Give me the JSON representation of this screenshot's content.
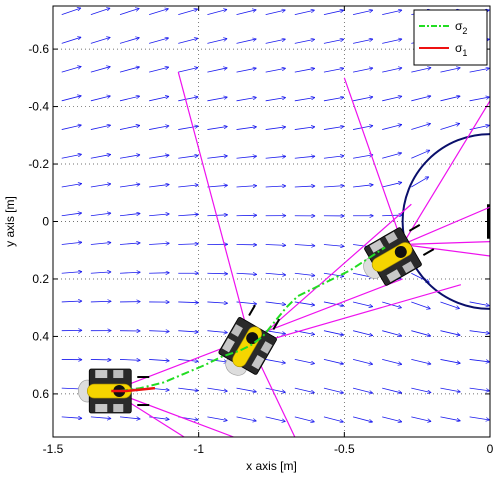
{
  "chart_data": {
    "type": "line",
    "title": "",
    "xlabel": "x axis [m]",
    "ylabel": "y axis [m]",
    "xlim": [
      -1.5,
      0
    ],
    "ylim": [
      -0.75,
      0.75
    ],
    "y_reversed": true,
    "grid": true,
    "legend_position": "top-right",
    "x_ticks": [
      "-1.5",
      "-1",
      "-0.5",
      "0"
    ],
    "y_ticks": [
      "-0.6",
      "-0.4",
      "-0.2",
      "0",
      "0.2",
      "0.4",
      "0.6"
    ],
    "x_tick_values": [
      -1.5,
      -1,
      -0.5,
      0
    ],
    "y_tick_values": [
      -0.6,
      -0.4,
      -0.2,
      0,
      0.2,
      0.4,
      0.6
    ],
    "series": [
      {
        "name": "σ2",
        "label_main": "σ",
        "label_sub": "2",
        "style": "dash-dot",
        "color": "#22dd22",
        "x": [
          -1.27,
          -1.2,
          -1.12,
          -1.05,
          -0.98,
          -0.92,
          -0.86,
          -0.82,
          -0.78,
          -0.74,
          -0.7,
          -0.66,
          -0.6,
          -0.54,
          -0.48,
          -0.42,
          -0.36
        ],
        "y": [
          0.59,
          0.58,
          0.56,
          0.53,
          0.5,
          0.47,
          0.45,
          0.43,
          0.4,
          0.35,
          0.3,
          0.26,
          0.23,
          0.2,
          0.17,
          0.13,
          0.09
        ]
      },
      {
        "name": "σ1",
        "label_main": "σ",
        "label_sub": "1",
        "style": "solid",
        "color": "#ee1111",
        "x": [
          -1.3,
          -1.25,
          -1.2,
          -1.15
        ],
        "y": [
          0.59,
          0.59,
          0.585,
          0.58
        ]
      }
    ],
    "obstacle": {
      "center_x": 0,
      "center_y": 0,
      "radius": 0.3,
      "color": "#0a0f6b"
    },
    "sensor_rays": [
      {
        "x0": -0.3,
        "y0": 0.08,
        "x1": -0.5,
        "y1": -0.5
      },
      {
        "x0": -0.3,
        "y0": 0.08,
        "x1": 0,
        "y1": -0.42
      },
      {
        "x0": -0.3,
        "y0": 0.08,
        "x1": 0,
        "y1": -0.05
      },
      {
        "x0": -0.3,
        "y0": 0.08,
        "x1": 0,
        "y1": 0.07
      },
      {
        "x0": -0.3,
        "y0": 0.08,
        "x1": 0,
        "y1": 0.12
      },
      {
        "x0": -0.82,
        "y0": 0.43,
        "x1": -1.07,
        "y1": -0.52
      },
      {
        "x0": -0.82,
        "y0": 0.43,
        "x1": -0.27,
        "y1": -0.06
      },
      {
        "x0": -0.82,
        "y0": 0.43,
        "x1": -0.1,
        "y1": 0.22
      },
      {
        "x0": -0.82,
        "y0": 0.43,
        "x1": -0.67,
        "y1": 0.75
      },
      {
        "x0": -1.3,
        "y0": 0.59,
        "x1": -0.3,
        "y1": 0.2
      },
      {
        "x0": -1.3,
        "y0": 0.59,
        "x1": -0.88,
        "y1": 0.75
      },
      {
        "x0": -1.3,
        "y0": 0.59,
        "x1": -1.05,
        "y1": 0.75
      }
    ],
    "ray_color": "#ee11ee",
    "vector_color": "#1a1aee",
    "robots": [
      {
        "x": -1.3,
        "y": 0.59,
        "heading_deg": 0
      },
      {
        "x": -0.83,
        "y": 0.43,
        "heading_deg": -60
      },
      {
        "x": -0.33,
        "y": 0.12,
        "heading_deg": -30
      }
    ]
  }
}
